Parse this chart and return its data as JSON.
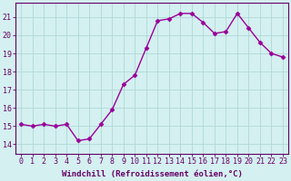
{
  "x": [
    0,
    1,
    2,
    3,
    4,
    5,
    6,
    7,
    8,
    9,
    10,
    11,
    12,
    13,
    14,
    15,
    16,
    17,
    18,
    19,
    20,
    21,
    22,
    23
  ],
  "y": [
    15.1,
    15.0,
    15.1,
    15.0,
    15.1,
    14.2,
    14.3,
    15.1,
    15.9,
    17.3,
    17.8,
    19.3,
    20.8,
    20.9,
    21.2,
    21.2,
    20.7,
    20.1,
    20.2,
    21.2,
    20.4,
    19.6,
    19.0,
    18.8
  ],
  "line_color": "#990099",
  "marker": "D",
  "marker_size": 2.5,
  "bg_color": "#d4f0f0",
  "grid_color": "#b0d8d8",
  "xlabel": "Windchill (Refroidissement éolien,°C)",
  "xlabel_fontsize": 6.5,
  "ylabel_values": [
    14,
    15,
    16,
    17,
    18,
    19,
    20,
    21
  ],
  "xlim": [
    -0.5,
    23.5
  ],
  "ylim": [
    13.5,
    21.8
  ],
  "tick_fontsize": 6.0,
  "axis_color": "#660066",
  "linewidth": 1.0,
  "spine_color": "#660066"
}
